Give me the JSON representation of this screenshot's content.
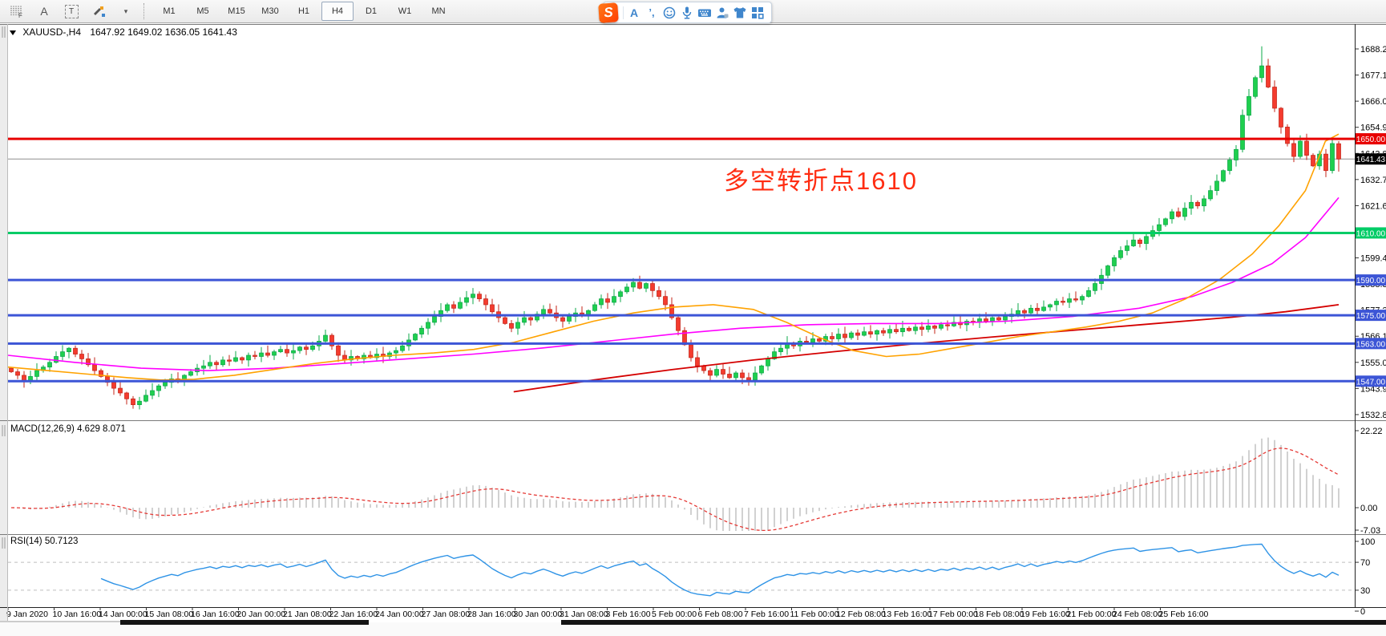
{
  "toolbar": {
    "tools": [
      {
        "id": "grid-f",
        "label": "F"
      },
      {
        "id": "font-a",
        "label": "A"
      },
      {
        "id": "text-label",
        "label": "T"
      },
      {
        "id": "recolor",
        "label": ""
      },
      {
        "id": "recolor-caret",
        "label": "▾"
      }
    ],
    "timeframes": [
      "M1",
      "M5",
      "M15",
      "M30",
      "H1",
      "H4",
      "D1",
      "W1",
      "MN"
    ],
    "active_timeframe": "H4"
  },
  "ime_bar": {
    "icons": [
      "sogou-logo",
      "letter-a",
      "punctuation",
      "emoji",
      "microphone",
      "keyboard",
      "account",
      "skin",
      "toolbox"
    ]
  },
  "chart": {
    "symbol_title": "XAUUSD-,H4",
    "ohlc_title": "1647.92 1649.02 1636.05 1641.43",
    "current_price": "1641.43",
    "annotation": {
      "text": "多空转折点1610",
      "color": "#ff2d12"
    },
    "price_ticks": [
      "1688.20",
      "1677.10",
      "1666.00",
      "1654.90",
      "1643.80",
      "1632.70",
      "1621.60",
      "1610.50",
      "1599.40",
      "1588.30",
      "1577.20",
      "1566.10",
      "1555.00",
      "1543.90",
      "1532.80"
    ],
    "levels": [
      {
        "price": 1650.0,
        "label": "1650.00",
        "color": "#e80000"
      },
      {
        "price": 1610.0,
        "label": "1610.00",
        "color": "#00cc66"
      },
      {
        "price": 1590.0,
        "label": "1590.00",
        "color": "#3c55d6"
      },
      {
        "price": 1575.0,
        "label": "1575.00",
        "color": "#3c55d6"
      },
      {
        "price": 1563.0,
        "label": "1563.00",
        "color": "#3c55d6"
      },
      {
        "price": 1547.0,
        "label": "1547.00",
        "color": "#3c55d6"
      }
    ],
    "time_labels": [
      "9 Jan 2020",
      "10 Jan 16:00",
      "14 Jan 00:00",
      "15 Jan 08:00",
      "16 Jan 16:00",
      "20 Jan 00:00",
      "21 Jan 08:00",
      "22 Jan 16:00",
      "24 Jan 00:00",
      "27 Jan 08:00",
      "28 Jan 16:00",
      "30 Jan 00:00",
      "31 Jan 08:00",
      "3 Feb 16:00",
      "5 Feb 00:00",
      "6 Feb 08:00",
      "7 Feb 16:00",
      "11 Feb 00:00",
      "12 Feb 08:00",
      "13 Feb 16:00",
      "17 Feb 00:00",
      "18 Feb 08:00",
      "19 Feb 16:00",
      "21 Feb 00:00",
      "24 Feb 08:00",
      "25 Feb 16:00"
    ]
  },
  "panes": {
    "macd": {
      "label": "MACD(12,26,9) 4.629 8.071",
      "axis": [
        "22.22",
        "0.00",
        "-7.03"
      ]
    },
    "rsi": {
      "label": "RSI(14) 50.7123",
      "axis": [
        "100",
        "70",
        "30",
        "0"
      ]
    }
  },
  "chart_data": {
    "type": "candlestick",
    "symbol": "XAUUSD",
    "timeframe": "H4",
    "title_ohlc": {
      "open": 1647.92,
      "high": 1649.02,
      "low": 1636.05,
      "close": 1641.43
    },
    "price_axis_range": [
      1532.8,
      1688.2
    ],
    "horizontal_levels": [
      1650.0,
      1610.0,
      1590.0,
      1575.0,
      1563.0,
      1547.0
    ],
    "current_price": 1641.43,
    "first_open": 1552.5,
    "closes": [
      1551.0,
      1549.5,
      1547.0,
      1549.0,
      1551.5,
      1553.0,
      1555.0,
      1557.5,
      1559.5,
      1561.0,
      1558.5,
      1556.5,
      1554.0,
      1551.5,
      1549.0,
      1546.5,
      1544.0,
      1542.0,
      1539.5,
      1537.0,
      1538.5,
      1541.0,
      1543.0,
      1545.0,
      1546.5,
      1548.0,
      1547.0,
      1549.5,
      1551.0,
      1552.5,
      1553.5,
      1555.0,
      1554.0,
      1556.0,
      1555.5,
      1557.0,
      1556.0,
      1558.0,
      1557.5,
      1559.0,
      1558.0,
      1559.5,
      1560.5,
      1559.0,
      1560.0,
      1561.5,
      1560.5,
      1562.0,
      1564.0,
      1566.5,
      1562.0,
      1558.0,
      1556.0,
      1557.5,
      1556.5,
      1558.0,
      1557.0,
      1558.5,
      1557.5,
      1559.0,
      1560.0,
      1562.0,
      1564.5,
      1567.0,
      1569.5,
      1572.0,
      1574.5,
      1577.0,
      1579.5,
      1578.0,
      1580.5,
      1582.5,
      1584.0,
      1582.0,
      1579.5,
      1576.5,
      1574.0,
      1571.5,
      1569.5,
      1572.0,
      1574.0,
      1573.0,
      1575.5,
      1577.5,
      1576.0,
      1574.0,
      1572.5,
      1574.5,
      1576.0,
      1575.0,
      1577.0,
      1579.5,
      1582.0,
      1580.5,
      1583.0,
      1585.0,
      1587.0,
      1589.0,
      1586.5,
      1588.5,
      1585.5,
      1583.0,
      1579.5,
      1574.0,
      1568.5,
      1562.5,
      1557.0,
      1553.5,
      1551.5,
      1549.5,
      1552.0,
      1550.0,
      1548.5,
      1550.5,
      1548.5,
      1547.5,
      1550.5,
      1553.5,
      1556.5,
      1559.5,
      1561.0,
      1563.0,
      1562.0,
      1564.0,
      1563.5,
      1565.0,
      1564.0,
      1566.0,
      1565.0,
      1567.0,
      1565.5,
      1567.5,
      1566.5,
      1568.0,
      1567.0,
      1568.5,
      1567.5,
      1569.0,
      1568.0,
      1569.5,
      1568.5,
      1570.0,
      1569.0,
      1570.5,
      1569.5,
      1571.0,
      1570.5,
      1572.0,
      1571.0,
      1572.5,
      1572.0,
      1573.5,
      1572.5,
      1574.0,
      1573.0,
      1574.5,
      1575.5,
      1577.0,
      1576.0,
      1578.0,
      1577.0,
      1578.5,
      1579.5,
      1581.0,
      1580.5,
      1582.0,
      1581.5,
      1583.0,
      1585.5,
      1588.5,
      1592.0,
      1596.0,
      1599.5,
      1602.5,
      1604.5,
      1607.0,
      1605.5,
      1608.5,
      1611.0,
      1613.5,
      1616.0,
      1619.0,
      1617.0,
      1620.5,
      1623.0,
      1621.5,
      1624.5,
      1628.0,
      1632.0,
      1636.5,
      1641.0,
      1645.5,
      1660.0,
      1668.0,
      1676.0,
      1681.0,
      1672.0,
      1663.0,
      1655.0,
      1648.0,
      1642.5,
      1649.0,
      1643.0,
      1638.5,
      1643.5,
      1636.5,
      1648.0,
      1641.43
    ],
    "wick_overrides": {
      "19": {
        "l": 1535.3
      },
      "49": {
        "h": 1568.9
      },
      "72": {
        "h": 1586.6
      },
      "97": {
        "h": 1590.8
      },
      "115": {
        "l": 1545.1
      },
      "195": {
        "h": 1689.3
      },
      "196": {
        "h": 1684.0
      },
      "207": {
        "o": 1647.92,
        "h": 1649.02,
        "l": 1636.05,
        "c": 1641.43
      }
    },
    "moving_averages": {
      "fast_orange": [
        [
          0.0,
          1553
        ],
        [
          0.03,
          1551.5
        ],
        [
          0.06,
          1550
        ],
        [
          0.09,
          1548.5
        ],
        [
          0.115,
          1547.5
        ],
        [
          0.14,
          1547.8
        ],
        [
          0.17,
          1549.5
        ],
        [
          0.2,
          1552
        ],
        [
          0.23,
          1554.5
        ],
        [
          0.26,
          1556.5
        ],
        [
          0.29,
          1558
        ],
        [
          0.32,
          1559
        ],
        [
          0.35,
          1560.5
        ],
        [
          0.38,
          1563.5
        ],
        [
          0.41,
          1568
        ],
        [
          0.44,
          1572.5
        ],
        [
          0.47,
          1576
        ],
        [
          0.5,
          1578.5
        ],
        [
          0.53,
          1579.5
        ],
        [
          0.56,
          1577.5
        ],
        [
          0.585,
          1572
        ],
        [
          0.61,
          1565.5
        ],
        [
          0.635,
          1560
        ],
        [
          0.66,
          1557.5
        ],
        [
          0.685,
          1558.5
        ],
        [
          0.71,
          1561
        ],
        [
          0.735,
          1563.5
        ],
        [
          0.76,
          1566
        ],
        [
          0.785,
          1568
        ],
        [
          0.81,
          1570
        ],
        [
          0.835,
          1572.5
        ],
        [
          0.86,
          1576
        ],
        [
          0.885,
          1582
        ],
        [
          0.91,
          1590
        ],
        [
          0.935,
          1601
        ],
        [
          0.955,
          1613
        ],
        [
          0.975,
          1628
        ],
        [
          0.99,
          1649
        ],
        [
          1.0,
          1652
        ]
      ],
      "mid_magenta": [
        [
          0.0,
          1558
        ],
        [
          0.05,
          1555
        ],
        [
          0.1,
          1552.5
        ],
        [
          0.15,
          1551.5
        ],
        [
          0.2,
          1552.5
        ],
        [
          0.25,
          1554.5
        ],
        [
          0.3,
          1556.5
        ],
        [
          0.35,
          1558.5
        ],
        [
          0.4,
          1561
        ],
        [
          0.45,
          1564
        ],
        [
          0.5,
          1567
        ],
        [
          0.55,
          1569.5
        ],
        [
          0.6,
          1571
        ],
        [
          0.65,
          1571.5
        ],
        [
          0.7,
          1571.5
        ],
        [
          0.75,
          1572.5
        ],
        [
          0.8,
          1574.5
        ],
        [
          0.85,
          1578
        ],
        [
          0.89,
          1583
        ],
        [
          0.92,
          1589
        ],
        [
          0.95,
          1597
        ],
        [
          0.975,
          1608
        ],
        [
          1.0,
          1625
        ]
      ],
      "slow_red": [
        [
          0.38,
          1542.5
        ],
        [
          0.44,
          1547.5
        ],
        [
          0.5,
          1552
        ],
        [
          0.56,
          1556
        ],
        [
          0.62,
          1559.5
        ],
        [
          0.68,
          1562.8
        ],
        [
          0.74,
          1565.8
        ],
        [
          0.8,
          1568.6
        ],
        [
          0.86,
          1571.4
        ],
        [
          0.92,
          1574.2
        ],
        [
          0.96,
          1576.5
        ],
        [
          1.0,
          1579.5
        ]
      ]
    },
    "macd": {
      "params": [
        12,
        26,
        9
      ],
      "current_macd": 4.629,
      "current_signal": 8.071,
      "axis_range": [
        -7.03,
        22.22
      ]
    },
    "rsi": {
      "period": 14,
      "current": 50.7123,
      "levels": [
        70,
        30
      ],
      "axis": [
        100,
        70,
        30,
        0
      ]
    }
  },
  "theme": {
    "up_body": "#1fcf4e",
    "up_edge": "#0ca84a",
    "down_body": "#f43b2e",
    "down_edge": "#c4261a",
    "ma_orange": "#ffa200",
    "ma_magenta": "#ff00ff",
    "ma_red": "#d40000",
    "current_line": "#8f8f8f",
    "current_badge_bg": "#000000",
    "macd_bar": "#bdbdbd",
    "macd_signal": "#e53935",
    "rsi_line": "#2e93e6",
    "rsi_level": "#bfbfbf",
    "axis_text": "#000000",
    "pane_border": "#7a7a7a"
  }
}
